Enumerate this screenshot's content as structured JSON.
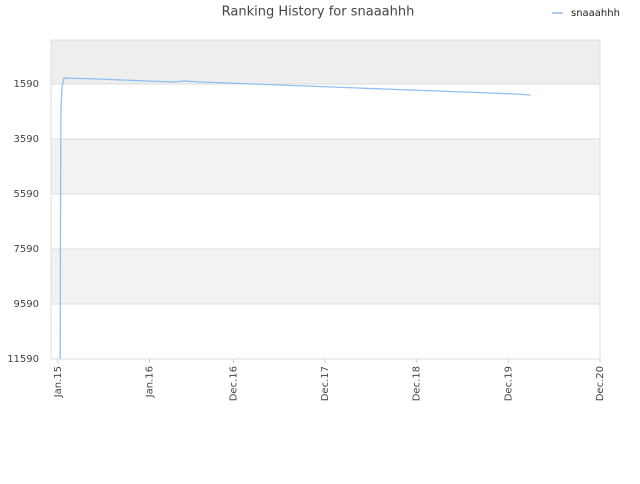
{
  "chart_data": {
    "type": "line",
    "title": "Ranking History for snaaahhh",
    "x_unit": "months",
    "xlim": [
      -0.9,
      71
    ],
    "xticks": [
      {
        "value": 0,
        "label": "Jan.15"
      },
      {
        "value": 12,
        "label": "Jan.16"
      },
      {
        "value": 23,
        "label": "Dec.16"
      },
      {
        "value": 35,
        "label": "Dec.17"
      },
      {
        "value": 47,
        "label": "Dec.18"
      },
      {
        "value": 59,
        "label": "Dec.19"
      },
      {
        "value": 71,
        "label": "Dec.20"
      }
    ],
    "ylim": [
      11590,
      -10
    ],
    "yticks": [
      1590,
      3590,
      5590,
      7590,
      9590,
      11590
    ],
    "grid": true,
    "legend": "top-right",
    "series": [
      {
        "name": "snaaahhh",
        "color": "#8fbff0",
        "x": [
          0.3,
          0.35,
          0.4,
          0.55,
          0.8,
          5.2,
          8.4,
          11.8,
          15.2,
          16.6,
          18.6,
          22.3,
          25.6,
          28.8,
          32.4,
          35.9,
          39.3,
          42.7,
          46.1,
          49.7,
          53.1,
          56.6,
          59.9,
          61.9
        ],
        "values": [
          11590,
          6000,
          2500,
          1700,
          1372,
          1408,
          1445,
          1481,
          1517,
          1481,
          1517,
          1554,
          1590,
          1626,
          1663,
          1699,
          1735,
          1772,
          1808,
          1845,
          1881,
          1917,
          1954,
          1990
        ]
      }
    ]
  }
}
